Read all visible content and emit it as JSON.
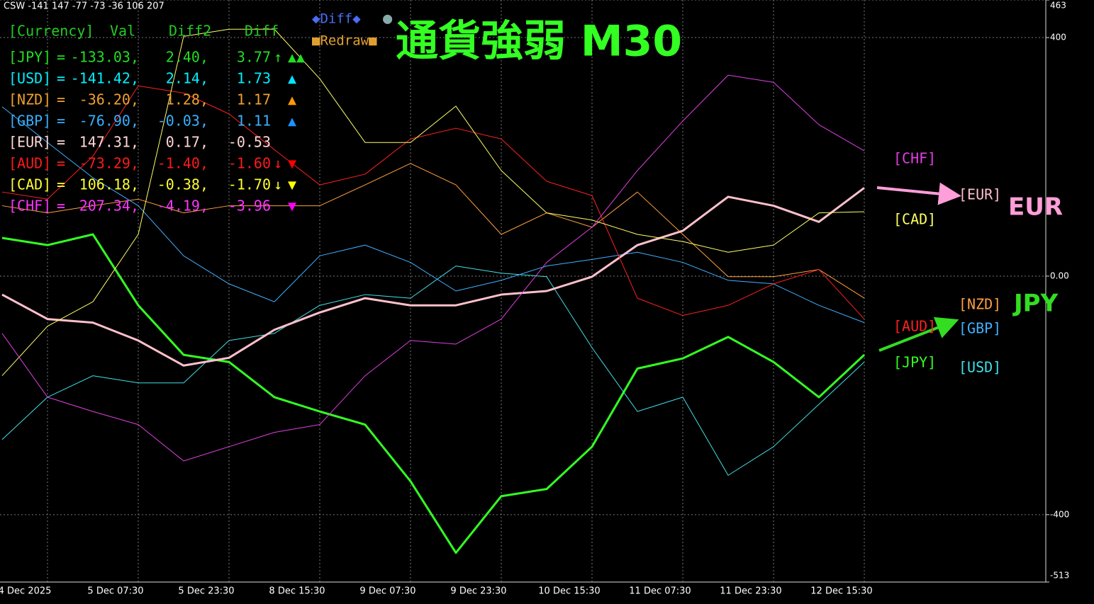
{
  "chart_data": {
    "type": "line",
    "title": "CSW -141 147 -77 -73 -36 106 207",
    "subtitle": "通貨強弱 M30",
    "categories": [
      null,
      "4 Dec 2025",
      null,
      "5 Dec 07:30",
      null,
      "5 Dec 23:30",
      null,
      "8 Dec 15:30",
      null,
      "9 Dec 07:30",
      null,
      "9 Dec 23:30",
      null,
      "10 Dec 15:30",
      null,
      "11 Dec 07:30",
      null,
      "11 Dec 23:30",
      null,
      "12 Dec 15:30"
    ],
    "ylim": [
      -513,
      463
    ],
    "yticks": [
      -513,
      -400,
      {
        "value": 0,
        "label": "0.00"
      },
      400,
      463
    ],
    "grid": true,
    "series": [
      {
        "name": "[JPY]",
        "color": "#33ff22",
        "values": [
          64,
          52,
          70,
          -49,
          -132,
          -144,
          -203,
          -227,
          -249,
          -344,
          -464,
          -369,
          -357,
          -286,
          -155,
          -138,
          -102,
          -144,
          -203,
          -132
        ]
      },
      {
        "name": "[USD]",
        "color": "#40e0e8",
        "values": [
          -274,
          -203,
          -167,
          -179,
          -179,
          -108,
          -96,
          -49,
          -31,
          -37,
          17,
          5,
          -1,
          -120,
          -227,
          -203,
          -334,
          -286,
          -215,
          -144
        ]
      },
      {
        "name": "[NZD]",
        "color": "#ffa040",
        "values": [
          118,
          106,
          118,
          129,
          106,
          118,
          118,
          118,
          153,
          189,
          153,
          70,
          106,
          82,
          141,
          70,
          -1,
          -1,
          11,
          -37
        ]
      },
      {
        "name": "[GBP]",
        "color": "#40b0ff",
        "values": [
          284,
          224,
          165,
          118,
          34,
          -13,
          -43,
          34,
          52,
          23,
          -25,
          -7,
          17,
          28,
          40,
          23,
          -7,
          -13,
          -49,
          -78
        ]
      },
      {
        "name": "[EUR]",
        "color": "#ffc0cc",
        "values": [
          -31,
          -72,
          -78,
          -108,
          -150,
          -137,
          -90,
          -61,
          -37,
          -49,
          -49,
          -31,
          -25,
          -1,
          52,
          76,
          133,
          118,
          91,
          148
        ]
      },
      {
        "name": "[AUD]",
        "color": "#ff2020",
        "values": [
          141,
          129,
          201,
          319,
          307,
          272,
          212,
          153,
          171,
          230,
          248,
          230,
          159,
          135,
          -37,
          -66,
          -49,
          -13,
          11,
          -72
        ]
      },
      {
        "name": "[CAD]",
        "color": "#ffff66",
        "values": [
          -167,
          -84,
          -43,
          70,
          402,
          414,
          414,
          331,
          224,
          224,
          285,
          177,
          106,
          94,
          70,
          58,
          40,
          52,
          106,
          108
        ]
      },
      {
        "name": "[CHF]",
        "color": "#e040e0",
        "values": [
          -96,
          -203,
          -227,
          -249,
          -310,
          -286,
          -262,
          -249,
          -167,
          -108,
          -114,
          -72,
          23,
          82,
          177,
          260,
          337,
          325,
          254,
          210
        ]
      }
    ],
    "annotations": [
      {
        "text": "EUR",
        "color": "#ff9ed8"
      },
      {
        "text": "JPY",
        "color": "#33dd22"
      }
    ]
  },
  "buttons": [
    "◆Diff◆",
    "●",
    "■Redraw■"
  ],
  "indicator_panel": {
    "header": [
      "[Currency]",
      "Val",
      "Diff2",
      "Diff"
    ],
    "rows": [
      {
        "name": "[JPY]",
        "eq": "=",
        "val": "-133.03,",
        "diff2": "2.40,",
        "diff": "3.77",
        "arrow": "↑",
        "signal": "▲▲",
        "color": "#22dd22",
        "signal_color": "#22dd22"
      },
      {
        "name": "[USD]",
        "eq": "=",
        "val": "-141.42,",
        "diff2": "2.14,",
        "diff": "1.73",
        "signal": "▲",
        "color": "#00f0ff",
        "signal_color": "#00e5ff"
      },
      {
        "name": "[NZD]",
        "eq": "=",
        "val": "-36.20,",
        "diff2": "1.28,",
        "diff": "1.17",
        "signal": "▲",
        "color": "#f0a030",
        "signal_color": "#ff9900"
      },
      {
        "name": "[GBP]",
        "eq": "=",
        "val": "-76.90,",
        "diff2": "-0.03,",
        "diff": "1.11",
        "signal": "▲",
        "color": "#3ab0ff",
        "signal_color": "#1e90ff"
      },
      {
        "name": "[EUR]",
        "eq": "=",
        "val": "147.31,",
        "diff2": "0.17,",
        "diff": "-0.53",
        "color": "#ffd8d8"
      },
      {
        "name": "[AUD]",
        "eq": "=",
        "val": "-73.29,",
        "diff2": "-1.40,",
        "diff": "-1.60",
        "arrow": "↓",
        "signal": "▼",
        "color": "#ff1a1a",
        "signal_color": "#ff0000"
      },
      {
        "name": "[CAD]",
        "eq": "=",
        "val": "106.18,",
        "diff2": "-0.38,",
        "diff": "-1.70",
        "arrow": "↓",
        "signal": "▼",
        "color": "#ffff30",
        "signal_color": "#ffff00"
      },
      {
        "name": "[CHF]",
        "eq": "=",
        "val": "207.34,",
        "diff2": "-4.19,",
        "diff": "-3.96",
        "signal": "▼",
        "color": "#ff33ff",
        "signal_color": "#ff00ff"
      }
    ]
  }
}
